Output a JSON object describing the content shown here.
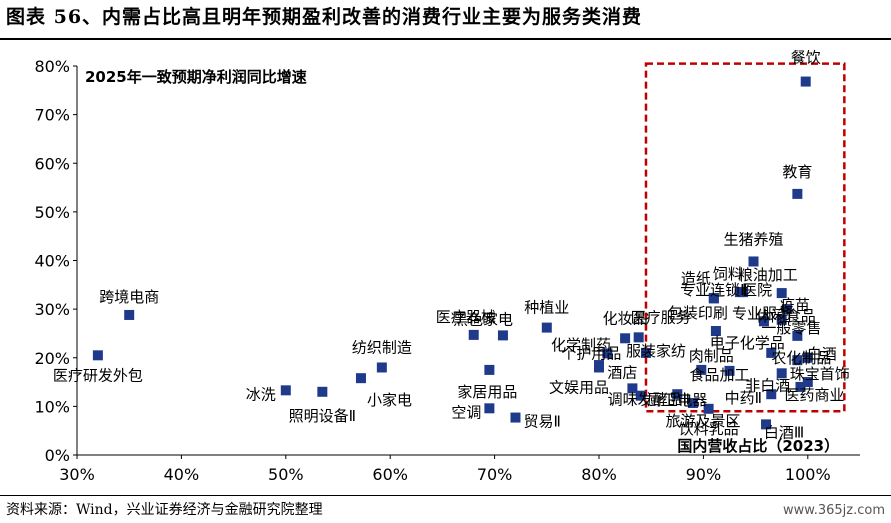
{
  "header": {
    "title": "图表 56、内需占比高且明年预期盈利改善的消费行业主要为服务类消费"
  },
  "footer": {
    "source": "资料来源：Wind，兴业证券经济与金融研究院整理",
    "watermark": "www.365jz.com"
  },
  "chart_data": {
    "type": "scatter",
    "title": "2025年一致预期净利润同比增速",
    "xlabel": "国内营收占比（2023）",
    "ylabel": "2025年一致预期净利润同比增速",
    "xlim": [
      0.3,
      1.05
    ],
    "ylim": [
      0.0,
      0.8
    ],
    "x_ticks": [
      "30%",
      "40%",
      "50%",
      "60%",
      "70%",
      "80%",
      "90%",
      "100%"
    ],
    "y_ticks": [
      "0%",
      "10%",
      "20%",
      "30%",
      "40%",
      "50%",
      "60%",
      "70%",
      "80%"
    ],
    "grid": false,
    "highlight_box": {
      "x": [
        0.845,
        1.035
      ],
      "y": [
        0.09,
        0.805
      ],
      "color": "#c00000",
      "style": "dashed"
    },
    "marker_color": "#1f3a8a",
    "points": [
      {
        "label": "医疗研发外包",
        "x": 0.32,
        "y": 0.205
      },
      {
        "label": "跨境电商",
        "x": 0.35,
        "y": 0.288
      },
      {
        "label": "冰洗",
        "x": 0.5,
        "y": 0.133
      },
      {
        "label": "照明设备Ⅱ",
        "x": 0.535,
        "y": 0.13
      },
      {
        "label": "小家电",
        "x": 0.572,
        "y": 0.158
      },
      {
        "label": "纺织制造",
        "x": 0.592,
        "y": 0.18
      },
      {
        "label": "医疗器械",
        "x": 0.68,
        "y": 0.247
      },
      {
        "label": "黑色家电",
        "x": 0.708,
        "y": 0.246
      },
      {
        "label": "家居用品",
        "x": 0.695,
        "y": 0.175
      },
      {
        "label": "空调",
        "x": 0.695,
        "y": 0.096
      },
      {
        "label": "贸易Ⅱ",
        "x": 0.72,
        "y": 0.077
      },
      {
        "label": "种植业",
        "x": 0.75,
        "y": 0.262
      },
      {
        "label": "化学制药",
        "x": 0.8,
        "y": 0.185
      },
      {
        "label": "个护用品",
        "x": 0.808,
        "y": 0.209
      },
      {
        "label": "文娱用品",
        "x": 0.8,
        "y": 0.18
      },
      {
        "label": "化妆品",
        "x": 0.825,
        "y": 0.24
      },
      {
        "label": "医疗服务",
        "x": 0.838,
        "y": 0.242
      },
      {
        "label": "服装家纺",
        "x": 0.845,
        "y": 0.21
      },
      {
        "label": "酒店",
        "x": 0.832,
        "y": 0.137
      },
      {
        "label": "调味发酵品Ⅱ",
        "x": 0.84,
        "y": 0.122
      },
      {
        "label": "厨卫电器",
        "x": 0.875,
        "y": 0.125
      },
      {
        "label": "旅游及景区",
        "x": 0.89,
        "y": 0.107
      },
      {
        "label": "饮料乳品",
        "x": 0.905,
        "y": 0.095
      },
      {
        "label": "包装印刷",
        "x": 0.912,
        "y": 0.255
      },
      {
        "label": "专业连锁Ⅱ",
        "x": 0.91,
        "y": 0.323
      },
      {
        "label": "造纸",
        "x": 0.91,
        "y": 0.322
      },
      {
        "label": "肉制品",
        "x": 0.898,
        "y": 0.175
      },
      {
        "label": "医院",
        "x": 0.938,
        "y": 0.335
      },
      {
        "label": "饲料",
        "x": 0.935,
        "y": 0.335
      },
      {
        "label": "粮油加工",
        "x": 0.975,
        "y": 0.333
      },
      {
        "label": "生猪养殖",
        "x": 0.948,
        "y": 0.398
      },
      {
        "label": "专业服务",
        "x": 0.958,
        "y": 0.275
      },
      {
        "label": "疫苗",
        "x": 0.98,
        "y": 0.3
      },
      {
        "label": "休闲食品",
        "x": 0.975,
        "y": 0.278
      },
      {
        "label": "一般零售",
        "x": 0.99,
        "y": 0.245
      },
      {
        "label": "电子化学品",
        "x": 0.965,
        "y": 0.21
      },
      {
        "label": "农化制品",
        "x": 0.99,
        "y": 0.195
      },
      {
        "label": "白酒",
        "x": 1.0,
        "y": 0.2
      },
      {
        "label": "中药Ⅱ",
        "x": 0.965,
        "y": 0.125
      },
      {
        "label": "食品加工",
        "x": 0.925,
        "y": 0.173
      },
      {
        "label": "珠宝首饰",
        "x": 1.0,
        "y": 0.15
      },
      {
        "label": "非白酒",
        "x": 0.975,
        "y": 0.168
      },
      {
        "label": "医药商业",
        "x": 0.993,
        "y": 0.14
      },
      {
        "label": "白酒Ⅲ",
        "x": 0.96,
        "y": 0.063
      },
      {
        "label": "教育",
        "x": 0.99,
        "y": 0.537
      },
      {
        "label": "餐饮",
        "x": 0.998,
        "y": 0.768
      }
    ]
  }
}
